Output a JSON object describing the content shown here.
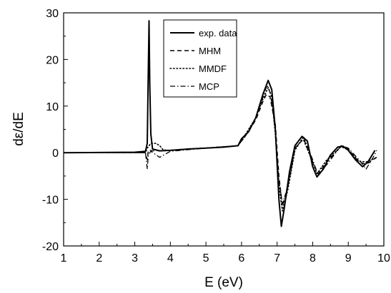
{
  "chart_data": {
    "type": "line",
    "title": "",
    "xlabel": "E (eV)",
    "ylabel": "dε/dE",
    "xlim": [
      1,
      10
    ],
    "ylim": [
      -20,
      30
    ],
    "xticks": [
      1,
      2,
      3,
      4,
      5,
      6,
      7,
      8,
      9,
      10
    ],
    "yticks": [
      -20,
      -10,
      0,
      10,
      20,
      30
    ],
    "grid": false,
    "legend_position": "top-right",
    "series": [
      {
        "name": "exp. data",
        "style": "solid",
        "points": [
          [
            1.0,
            0.0
          ],
          [
            2.0,
            0.05
          ],
          [
            3.0,
            0.1
          ],
          [
            3.3,
            0.3
          ],
          [
            3.35,
            2.0
          ],
          [
            3.38,
            18.0
          ],
          [
            3.4,
            28.3
          ],
          [
            3.42,
            15.0
          ],
          [
            3.45,
            4.0
          ],
          [
            3.5,
            0.8
          ],
          [
            3.7,
            0.4
          ],
          [
            4.0,
            0.5
          ],
          [
            4.5,
            0.8
          ],
          [
            5.0,
            1.0
          ],
          [
            5.5,
            1.2
          ],
          [
            5.9,
            1.5
          ],
          [
            6.0,
            3.0
          ],
          [
            6.2,
            4.5
          ],
          [
            6.4,
            7.5
          ],
          [
            6.6,
            12.5
          ],
          [
            6.75,
            15.5
          ],
          [
            6.85,
            13.5
          ],
          [
            6.95,
            5.0
          ],
          [
            7.05,
            -10.0
          ],
          [
            7.12,
            -15.8
          ],
          [
            7.2,
            -12.0
          ],
          [
            7.35,
            -4.0
          ],
          [
            7.5,
            1.5
          ],
          [
            7.7,
            3.5
          ],
          [
            7.85,
            2.5
          ],
          [
            8.0,
            -3.0
          ],
          [
            8.12,
            -5.2
          ],
          [
            8.3,
            -3.5
          ],
          [
            8.5,
            -0.5
          ],
          [
            8.7,
            1.2
          ],
          [
            8.85,
            1.4
          ],
          [
            9.0,
            0.5
          ],
          [
            9.2,
            -1.5
          ],
          [
            9.4,
            -3.0
          ],
          [
            9.55,
            -2.0
          ],
          [
            9.75,
            0.5
          ]
        ]
      },
      {
        "name": "MHM",
        "style": "dashed",
        "points": [
          [
            1.0,
            0.0
          ],
          [
            3.0,
            0.0
          ],
          [
            3.3,
            0.0
          ],
          [
            3.35,
            -1.5
          ],
          [
            3.38,
            0.5
          ],
          [
            3.42,
            0.5
          ],
          [
            3.5,
            0.4
          ],
          [
            4.0,
            0.5
          ],
          [
            5.0,
            1.0
          ],
          [
            5.9,
            1.5
          ],
          [
            6.1,
            3.5
          ],
          [
            6.4,
            7.0
          ],
          [
            6.6,
            11.0
          ],
          [
            6.7,
            12.5
          ],
          [
            6.8,
            12.0
          ],
          [
            6.95,
            6.0
          ],
          [
            7.05,
            -5.0
          ],
          [
            7.15,
            -11.5
          ],
          [
            7.3,
            -7.0
          ],
          [
            7.5,
            1.0
          ],
          [
            7.75,
            3.0
          ],
          [
            8.0,
            -2.0
          ],
          [
            8.15,
            -4.5
          ],
          [
            8.4,
            -2.0
          ],
          [
            8.8,
            1.5
          ],
          [
            9.0,
            0.8
          ],
          [
            9.3,
            -2.0
          ],
          [
            9.5,
            -2.5
          ],
          [
            9.8,
            -1.0
          ]
        ]
      },
      {
        "name": "MMDF",
        "style": "dotted",
        "points": [
          [
            1.0,
            0.0
          ],
          [
            3.3,
            0.0
          ],
          [
            3.35,
            1.0
          ],
          [
            3.45,
            2.0
          ],
          [
            3.6,
            2.0
          ],
          [
            3.7,
            1.5
          ],
          [
            3.8,
            0.6
          ],
          [
            4.0,
            0.5
          ],
          [
            5.0,
            1.0
          ],
          [
            5.9,
            1.5
          ],
          [
            6.1,
            3.8
          ],
          [
            6.4,
            7.5
          ],
          [
            6.6,
            11.5
          ],
          [
            6.75,
            14.0
          ],
          [
            6.85,
            12.0
          ],
          [
            6.95,
            4.0
          ],
          [
            7.05,
            -7.0
          ],
          [
            7.15,
            -12.5
          ],
          [
            7.3,
            -8.0
          ],
          [
            7.5,
            0.5
          ],
          [
            7.72,
            3.2
          ],
          [
            8.0,
            -2.0
          ],
          [
            8.12,
            -4.5
          ],
          [
            8.4,
            -1.5
          ],
          [
            8.8,
            1.3
          ],
          [
            9.0,
            0.6
          ],
          [
            9.3,
            -1.8
          ],
          [
            9.5,
            -2.0
          ],
          [
            9.8,
            -1.0
          ]
        ]
      },
      {
        "name": "MCP",
        "style": "dashdot",
        "points": [
          [
            1.0,
            0.0
          ],
          [
            3.3,
            0.0
          ],
          [
            3.35,
            -3.5
          ],
          [
            3.38,
            -0.5
          ],
          [
            3.45,
            0.3
          ],
          [
            3.7,
            -1.0
          ],
          [
            4.0,
            0.3
          ],
          [
            5.0,
            1.0
          ],
          [
            5.9,
            1.5
          ],
          [
            6.1,
            3.5
          ],
          [
            6.4,
            7.5
          ],
          [
            6.6,
            12.0
          ],
          [
            6.72,
            14.5
          ],
          [
            6.82,
            12.5
          ],
          [
            6.95,
            4.5
          ],
          [
            7.05,
            -6.0
          ],
          [
            7.15,
            -11.0
          ],
          [
            7.3,
            -7.5
          ],
          [
            7.5,
            0.8
          ],
          [
            7.75,
            3.3
          ],
          [
            8.0,
            -1.5
          ],
          [
            8.15,
            -4.8
          ],
          [
            8.4,
            -2.5
          ],
          [
            8.8,
            1.5
          ],
          [
            9.0,
            1.0
          ],
          [
            9.3,
            -1.5
          ],
          [
            9.5,
            -3.5
          ],
          [
            9.7,
            -1.0
          ],
          [
            9.8,
            0.5
          ]
        ]
      }
    ]
  }
}
